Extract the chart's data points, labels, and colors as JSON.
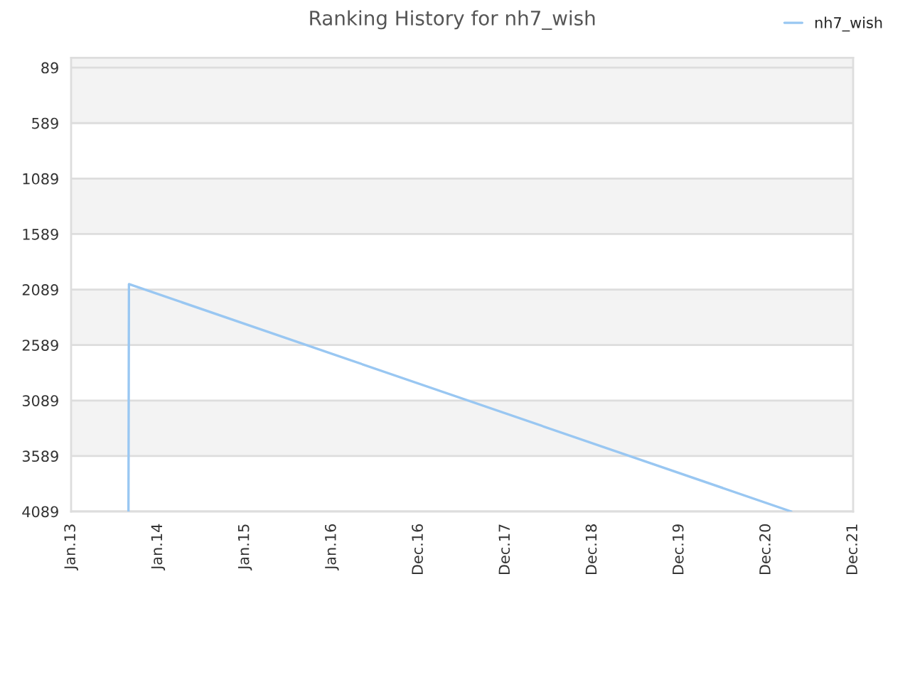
{
  "chart_data": {
    "type": "line",
    "title": "Ranking History for nh7_wish",
    "x": [
      "2013-08-30",
      "2013-09-01",
      "2021-04-14"
    ],
    "series": [
      {
        "name": "nh7_wish",
        "color": "#99c7f2",
        "values": [
          4089,
          2040,
          4089
        ]
      }
    ],
    "xlim": [
      "2013-01-01",
      "2021-12-30"
    ],
    "xticks": [
      {
        "value": "2013-01-01",
        "label": "Jan.13"
      },
      {
        "value": "2014-01-01",
        "label": "Jan.14"
      },
      {
        "value": "2015-01-01",
        "label": "Jan.15"
      },
      {
        "value": "2016-01-01",
        "label": "Jan.16"
      },
      {
        "value": "2016-12-31",
        "label": "Dec.16"
      },
      {
        "value": "2017-12-31",
        "label": "Dec.17"
      },
      {
        "value": "2018-12-31",
        "label": "Dec.18"
      },
      {
        "value": "2019-12-31",
        "label": "Dec.19"
      },
      {
        "value": "2020-12-30",
        "label": "Dec.20"
      },
      {
        "value": "2021-12-30",
        "label": "Dec.21"
      }
    ],
    "ylim": [
      4089,
      1
    ],
    "yticks": [
      89,
      589,
      1089,
      1589,
      2089,
      2589,
      3089,
      3589,
      4089
    ],
    "grid": "y",
    "legend": "top right",
    "marker": "none",
    "line_style": "solid"
  }
}
